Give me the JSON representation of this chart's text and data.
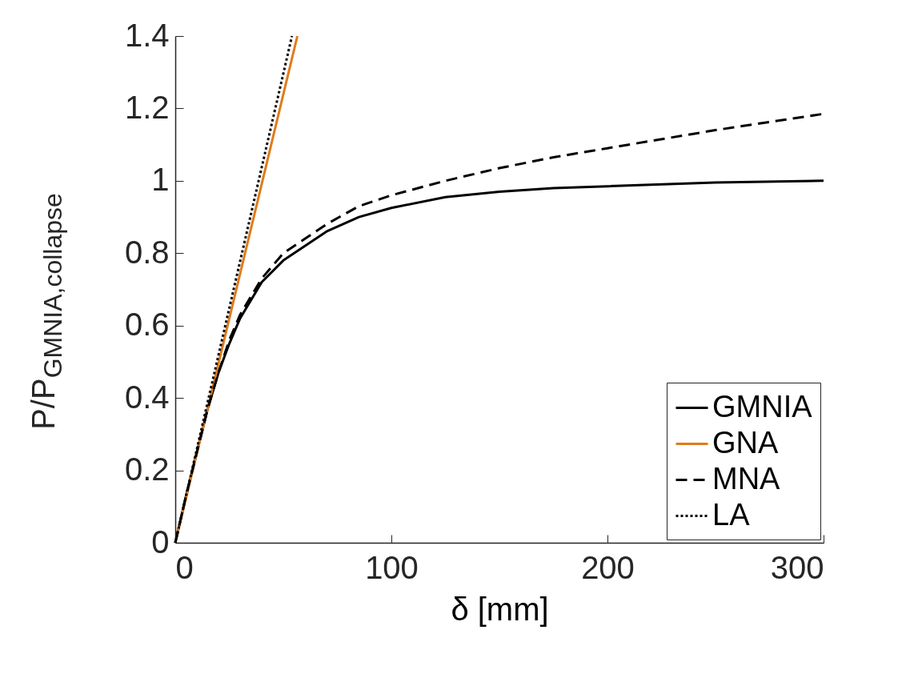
{
  "chart_data": {
    "type": "line",
    "xlabel": "δ [mm]",
    "ylabel": "P/P$_{GMNIA,collapse}$",
    "xlim": [
      0,
      300
    ],
    "xticks": [
      0,
      100,
      200,
      300
    ],
    "ylim": [
      0,
      1.4
    ],
    "yticks": [
      0,
      0.2,
      0.4,
      0.6,
      0.8,
      1,
      1.2,
      1.4
    ],
    "grid": false,
    "legend": "bottom right",
    "marker": "none",
    "series": [
      {
        "name": "GMNIA",
        "color": "#000000",
        "line_style": "solid",
        "x": [
          0,
          5,
          10,
          15,
          20,
          25,
          30,
          40,
          50,
          60,
          70,
          85,
          100,
          125,
          150,
          175,
          200,
          250,
          300
        ],
        "values": [
          0,
          0.13,
          0.25,
          0.37,
          0.47,
          0.55,
          0.62,
          0.72,
          0.78,
          0.82,
          0.86,
          0.9,
          0.925,
          0.955,
          0.97,
          0.98,
          0.985,
          0.995,
          1
        ]
      },
      {
        "name": "GNA",
        "color": "#e07b1a",
        "line_style": "solid",
        "x": [
          0,
          56.5
        ],
        "values": [
          0,
          1.4
        ]
      },
      {
        "name": "MNA",
        "color": "#000000",
        "line_style": "dashed",
        "x": [
          0,
          5,
          10,
          15,
          20,
          25,
          30,
          40,
          50,
          60,
          70,
          85,
          100,
          125,
          150,
          175,
          200,
          250,
          300
        ],
        "values": [
          0,
          0.13,
          0.25,
          0.37,
          0.47,
          0.56,
          0.63,
          0.73,
          0.8,
          0.84,
          0.88,
          0.93,
          0.96,
          1.0,
          1.035,
          1.065,
          1.09,
          1.14,
          1.185
        ]
      },
      {
        "name": "LA",
        "color": "#000000",
        "line_style": "dotted",
        "x": [
          0,
          54
        ],
        "values": [
          0,
          1.4
        ]
      }
    ]
  }
}
